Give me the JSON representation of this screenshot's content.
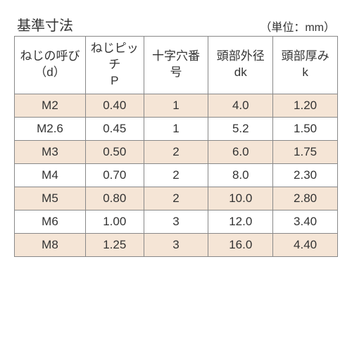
{
  "title": "基準寸法",
  "unit": "（単位：mm）",
  "table": {
    "type": "table",
    "background_color": "#ffffff",
    "row_shade_color": "#f5e5d6",
    "border_color": "#888888",
    "text_color": "#333333",
    "header_fontsize": 17,
    "cell_fontsize": 17,
    "column_widths_pct": [
      22,
      18,
      20,
      20,
      20
    ],
    "columns": [
      {
        "line1": "ねじの呼び",
        "line2": "（d）"
      },
      {
        "line1": "ねじピッチ",
        "line2": "P"
      },
      {
        "line1": "十字穴番号",
        "line2": ""
      },
      {
        "line1": "頭部外径",
        "line2": "dk"
      },
      {
        "line1": "頭部厚み",
        "line2": "k"
      }
    ],
    "rows": [
      [
        "M2",
        "0.40",
        "1",
        "4.0",
        "1.20"
      ],
      [
        "M2.6",
        "0.45",
        "1",
        "5.2",
        "1.50"
      ],
      [
        "M3",
        "0.50",
        "2",
        "6.0",
        "1.75"
      ],
      [
        "M4",
        "0.70",
        "2",
        "8.0",
        "2.30"
      ],
      [
        "M5",
        "0.80",
        "2",
        "10.0",
        "2.80"
      ],
      [
        "M6",
        "1.00",
        "3",
        "12.0",
        "3.40"
      ],
      [
        "M8",
        "1.25",
        "3",
        "16.0",
        "4.40"
      ]
    ]
  }
}
